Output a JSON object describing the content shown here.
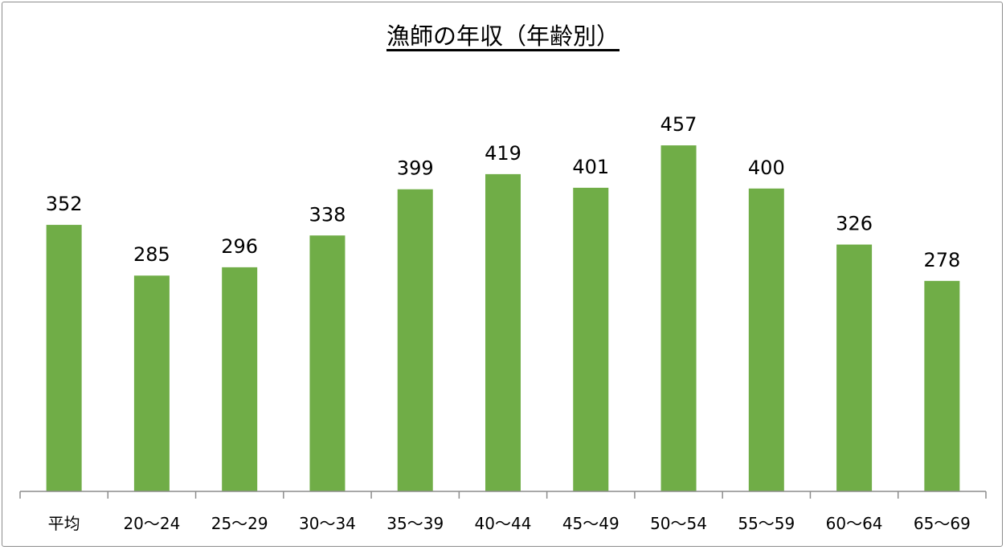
{
  "chart_data": {
    "type": "bar",
    "title": "漁師の年収（年齢別）",
    "categories": [
      "平均",
      "20～24",
      "25～29",
      "30～34",
      "35～39",
      "40～44",
      "45～49",
      "50～54",
      "55～59",
      "60～64",
      "65～69"
    ],
    "values": [
      352,
      285,
      296,
      338,
      399,
      419,
      401,
      457,
      400,
      326,
      278
    ],
    "data_labels": true,
    "xlabel": "",
    "ylabel": "",
    "ylim": [
      0,
      500
    ],
    "grid": false,
    "legend": "none",
    "bar_color": "#70AD47"
  }
}
